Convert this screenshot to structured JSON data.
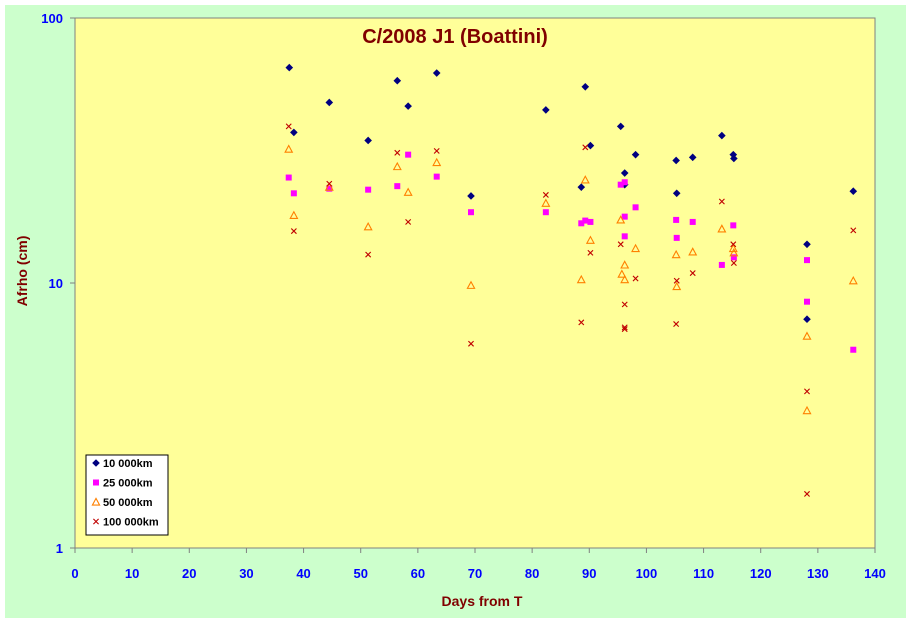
{
  "chart_data": {
    "type": "scatter",
    "title": "C/2008 J1 (Boattini)",
    "xlabel": "Days from T",
    "ylabel": "Afrho (cm)",
    "xlim": [
      0,
      140
    ],
    "ylim": [
      1,
      100
    ],
    "yscale": "log",
    "x_ticks": [
      0,
      10,
      20,
      30,
      40,
      50,
      60,
      70,
      80,
      90,
      100,
      110,
      120,
      130,
      140
    ],
    "y_ticks": [
      1,
      10,
      100
    ],
    "grid": false,
    "legend_position": "bottom-left",
    "colors": {
      "outer_background": "#ccffcc",
      "plot_background": "#ffff99",
      "plot_border": "#808080"
    },
    "series": [
      {
        "name": "10 000km",
        "marker": "diamond",
        "color": "#000080",
        "points": [
          [
            37.5,
            65
          ],
          [
            38.3,
            37
          ],
          [
            44.5,
            48
          ],
          [
            51.3,
            34.5
          ],
          [
            56.4,
            58
          ],
          [
            58.3,
            46.5
          ],
          [
            63.3,
            62
          ],
          [
            69.3,
            21.3
          ],
          [
            82.4,
            45
          ],
          [
            88.6,
            23
          ],
          [
            89.3,
            55
          ],
          [
            90.2,
            33
          ],
          [
            95.5,
            39
          ],
          [
            96.2,
            26
          ],
          [
            96.2,
            23.5
          ],
          [
            98.1,
            30.5
          ],
          [
            105.2,
            29
          ],
          [
            105.3,
            21.8
          ],
          [
            108.1,
            29.8
          ],
          [
            113.2,
            36
          ],
          [
            115.2,
            30.5
          ],
          [
            115.3,
            29.5
          ],
          [
            128.1,
            14
          ],
          [
            128.1,
            7.3
          ],
          [
            136.2,
            22.2
          ]
        ]
      },
      {
        "name": "25 000km",
        "marker": "square",
        "color": "#ff00ff",
        "points": [
          [
            37.4,
            25
          ],
          [
            38.3,
            21.8
          ],
          [
            44.5,
            22.7
          ],
          [
            51.3,
            22.5
          ],
          [
            56.4,
            23.2
          ],
          [
            58.3,
            30.5
          ],
          [
            63.3,
            25.2
          ],
          [
            69.3,
            18.5
          ],
          [
            82.4,
            18.5
          ],
          [
            88.6,
            16.8
          ],
          [
            89.3,
            17.2
          ],
          [
            90.2,
            17
          ],
          [
            95.5,
            23.5
          ],
          [
            96.2,
            24
          ],
          [
            96.2,
            17.8
          ],
          [
            96.2,
            15
          ],
          [
            98.1,
            19.3
          ],
          [
            105.2,
            17.3
          ],
          [
            105.3,
            14.8
          ],
          [
            108.1,
            17
          ],
          [
            113.2,
            11.7
          ],
          [
            115.2,
            16.5
          ],
          [
            115.3,
            12.5
          ],
          [
            128.1,
            12.2
          ],
          [
            128.1,
            8.5
          ],
          [
            136.2,
            5.6
          ]
        ]
      },
      {
        "name": "50 000km",
        "marker": "triangle",
        "color": "#ff8000",
        "points": [
          [
            37.4,
            32
          ],
          [
            38.3,
            18
          ],
          [
            44.5,
            23
          ],
          [
            51.3,
            16.3
          ],
          [
            56.4,
            27.5
          ],
          [
            58.3,
            22
          ],
          [
            63.3,
            28.5
          ],
          [
            69.3,
            9.8
          ],
          [
            82.4,
            20
          ],
          [
            88.6,
            10.3
          ],
          [
            89.3,
            24.5
          ],
          [
            90.2,
            14.5
          ],
          [
            95.5,
            17.3
          ],
          [
            95.7,
            10.8
          ],
          [
            96.2,
            11.7
          ],
          [
            96.2,
            10.3
          ],
          [
            98.1,
            13.5
          ],
          [
            105.2,
            12.8
          ],
          [
            105.3,
            9.7
          ],
          [
            108.1,
            13.1
          ],
          [
            113.2,
            16
          ],
          [
            115.2,
            13.5
          ],
          [
            115.3,
            13
          ],
          [
            128.1,
            6.3
          ],
          [
            128.1,
            3.3
          ],
          [
            136.2,
            10.2
          ]
        ]
      },
      {
        "name": "100 000km",
        "marker": "x",
        "color": "#c00000",
        "points": [
          [
            37.4,
            39
          ],
          [
            38.3,
            15.7
          ],
          [
            44.5,
            23.7
          ],
          [
            51.3,
            12.8
          ],
          [
            56.4,
            31
          ],
          [
            58.3,
            17
          ],
          [
            63.3,
            31.5
          ],
          [
            69.3,
            5.9
          ],
          [
            82.4,
            21.5
          ],
          [
            88.6,
            7.1
          ],
          [
            89.3,
            32.5
          ],
          [
            90.2,
            13
          ],
          [
            95.5,
            14
          ],
          [
            96.2,
            8.3
          ],
          [
            96.2,
            6.8
          ],
          [
            96.2,
            6.7
          ],
          [
            98.1,
            10.4
          ],
          [
            105.2,
            7
          ],
          [
            105.3,
            10.2
          ],
          [
            108.1,
            10.9
          ],
          [
            113.2,
            20.3
          ],
          [
            115.2,
            14
          ],
          [
            115.3,
            11.9
          ],
          [
            128.1,
            3.9
          ],
          [
            128.1,
            1.6
          ],
          [
            136.2,
            15.8
          ]
        ]
      }
    ]
  }
}
